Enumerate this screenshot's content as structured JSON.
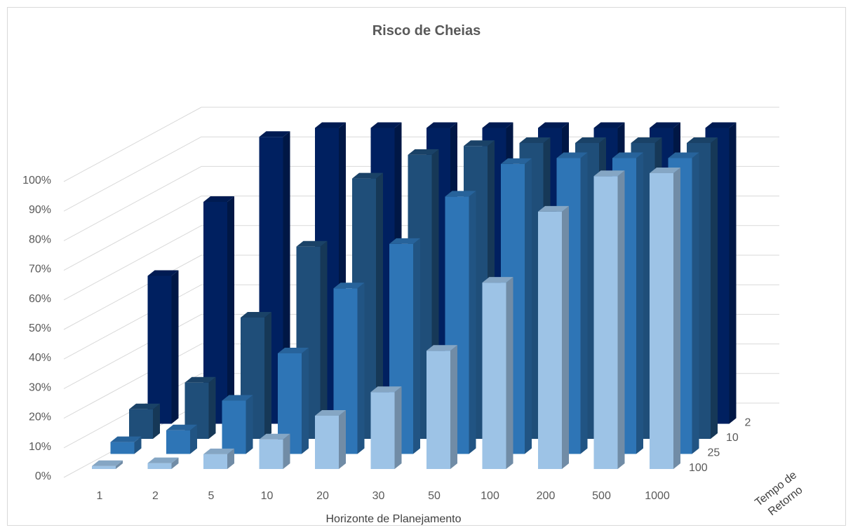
{
  "chart_data": {
    "type": "bar",
    "subtype": "3d-column",
    "title": "Risco de Cheias",
    "xlabel": "Horizonte de Planejamento",
    "depth_label_line1": "Tempo de",
    "depth_label_line2": "Retorno",
    "zlabel": "",
    "categories": [
      "1",
      "2",
      "5",
      "10",
      "20",
      "30",
      "50",
      "100",
      "200",
      "500",
      "1000"
    ],
    "y_ticks": [
      "0%",
      "10%",
      "20%",
      "30%",
      "40%",
      "50%",
      "60%",
      "70%",
      "80%",
      "90%",
      "100%"
    ],
    "ylim": [
      0,
      100
    ],
    "grid": true,
    "series": [
      {
        "name": "2",
        "color": "#002060",
        "values": [
          50,
          75,
          97,
          100,
          100,
          100,
          100,
          100,
          100,
          100,
          100
        ]
      },
      {
        "name": "10",
        "color": "#1F4E79",
        "values": [
          10,
          19,
          41,
          65,
          88,
          96,
          99,
          100,
          100,
          100,
          100
        ]
      },
      {
        "name": "25",
        "color": "#2E75B6",
        "values": [
          4,
          8,
          18,
          34,
          56,
          71,
          87,
          98,
          100,
          100,
          100
        ]
      },
      {
        "name": "100",
        "color": "#9DC3E6",
        "values": [
          1,
          2,
          5,
          10,
          18,
          26,
          40,
          63,
          87,
          99,
          100
        ]
      }
    ]
  }
}
